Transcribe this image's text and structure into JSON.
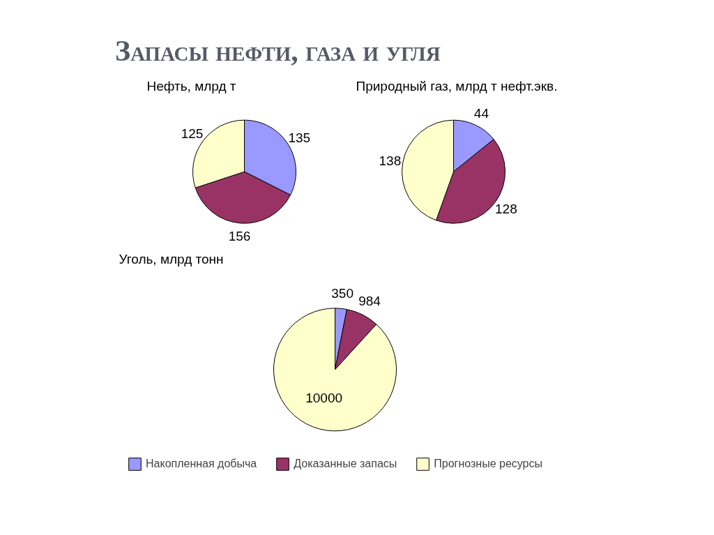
{
  "chart_data": [
    {
      "type": "pie",
      "title": "Запасы нефти, газа и угля",
      "subtitle": "Нефть, млрд т",
      "categories": [
        null,
        null,
        null
      ],
      "values": [
        135,
        156,
        125
      ],
      "colors": [
        "#9999ff",
        "#993366",
        "#ffffcc"
      ],
      "data_labels": true
    },
    {
      "type": "pie",
      "title": "Природный газ, млрд т нефт.экв.",
      "categories": [
        null,
        null,
        null
      ],
      "values": [
        44,
        128,
        138
      ],
      "colors": [
        "#9999ff",
        "#993366",
        "#ffffcc"
      ],
      "data_labels": true
    },
    {
      "type": "pie",
      "title": "Уголь, млрд тонн",
      "categories": [
        "Накопленная добыча",
        "Доказанные запасы",
        "Прогнозные ресурсы"
      ],
      "values": [
        350,
        984,
        10000
      ],
      "colors": [
        "#9999ff",
        "#993366",
        "#ffffcc"
      ],
      "data_labels": true,
      "legend": "bottom"
    }
  ]
}
